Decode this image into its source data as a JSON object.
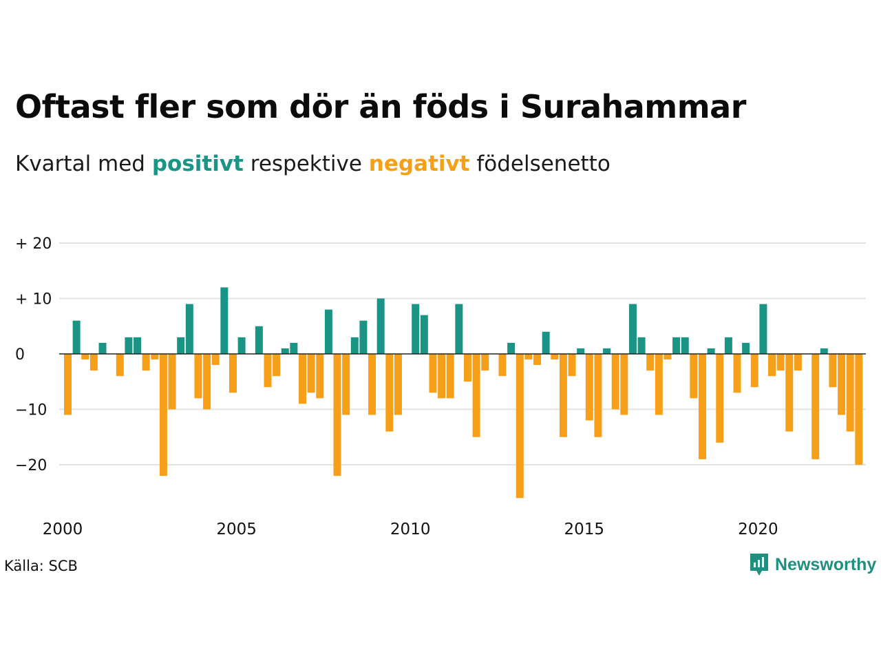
{
  "title": "Oftast fler som dör än föds i Surahammar",
  "subtitle": {
    "prefix": "Kvartal med",
    "positive": "positivt",
    "middle": "respektive",
    "negative": "negativt",
    "suffix": "födelsenetto"
  },
  "source": "Källa: SCB",
  "brand": {
    "name": "Newsworthy",
    "icon": "newsworthy-logo-icon"
  },
  "colors": {
    "positive": "#1a9484",
    "negative": "#f6a01a",
    "grid": "#e3e3e3",
    "zero": "#222222"
  },
  "chart_data": {
    "type": "bar",
    "title": "Oftast fler som dör än föds i Surahammar",
    "subtitle": "Kvartal med positivt respektive negativt födelsenetto",
    "x_start": "2000 Q1",
    "x_ticks": [
      "2000",
      "2005",
      "2010",
      "2015",
      "2020"
    ],
    "y_ticks": [
      20,
      10,
      0,
      -10,
      -20
    ],
    "y_tick_labels": [
      "+ 20",
      "+ 10",
      "0",
      "−10",
      "−20"
    ],
    "ylim": [
      -26,
      20
    ],
    "grid": true,
    "values": [
      -11,
      6,
      -1,
      -3,
      2,
      0,
      -4,
      3,
      3,
      -3,
      -1,
      -22,
      -10,
      3,
      9,
      -8,
      -10,
      -2,
      12,
      -7,
      3,
      0,
      5,
      -6,
      -4,
      1,
      2,
      -9,
      -7,
      -8,
      8,
      -22,
      -11,
      3,
      6,
      -11,
      10,
      -14,
      -11,
      0,
      9,
      7,
      -7,
      -8,
      -8,
      9,
      -5,
      -15,
      -3,
      0,
      -4,
      2,
      -26,
      -1,
      -2,
      4,
      -1,
      -15,
      -4,
      1,
      -12,
      -15,
      1,
      -10,
      -11,
      9,
      3,
      -3,
      -11,
      -1,
      3,
      3,
      -8,
      -19,
      1,
      -16,
      3,
      -7,
      2,
      -6,
      9,
      -4,
      -3,
      -14,
      -3,
      0,
      -19,
      1,
      -6,
      -11,
      -14,
      -20
    ]
  }
}
